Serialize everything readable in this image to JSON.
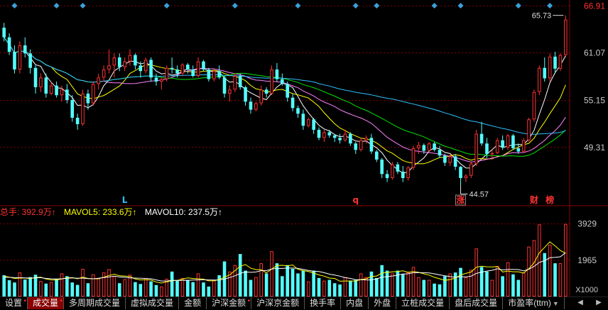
{
  "colors": {
    "up": "#ff3232",
    "down": "#54ffff",
    "ma5": "#ffffff",
    "ma10": "#ffff00",
    "ma20": "#ff80ff",
    "ma30": "#00e600",
    "ma60": "#2ec0ff",
    "grid": "#8a0000",
    "axis_text": "#c8c8c8",
    "marker": "#3aa0d8"
  },
  "legend": {
    "total_label": "总手: 392.9万↑",
    "mavol5_label": "MAVOL5: 233.6万↑",
    "mavol10_label": "MAVOL10: 237.5万↑"
  },
  "tabs": [
    {
      "label": "设置",
      "dot": true
    },
    {
      "label": "成交量",
      "dot": true,
      "active": true
    },
    {
      "label": "多周期成交量"
    },
    {
      "label": "虚拟成交量"
    },
    {
      "label": "金额"
    },
    {
      "label": "沪深金额",
      "dot": true
    },
    {
      "label": "沪深京金额"
    },
    {
      "label": "换手率"
    },
    {
      "label": "内盘"
    },
    {
      "label": "外盘"
    },
    {
      "label": "立桩成交量"
    },
    {
      "label": "盘后成交量"
    },
    {
      "label": "市盈率(ttm)",
      "dropdown": true
    }
  ],
  "chart_data": [
    {
      "type": "candlestick",
      "ylim": [
        42.5,
        67.2
      ],
      "yticks": [
        "66.91",
        "61.07",
        "55.15",
        "49.31"
      ],
      "max_label": "65.73",
      "min_label": "44.57",
      "annotations": [
        {
          "text": "L",
          "color": "#2ec0ff",
          "at_index": 23
        },
        {
          "text": "q",
          "color": "#ff3232",
          "at_index": 67
        },
        {
          "text": "涨",
          "color": "#ff3232",
          "boxed": true,
          "at_index": 87
        },
        {
          "text": "财",
          "color": "#ff3232",
          "at_index": 101
        },
        {
          "text": "榜",
          "color": "#ff3232",
          "at_index": 104
        }
      ],
      "top_marker_indices": [
        2,
        10,
        15,
        31,
        44,
        56,
        67,
        71,
        82,
        87,
        98,
        104
      ],
      "ohlc": [
        [
          64.2,
          64.8,
          62.5,
          63.0
        ],
        [
          63.0,
          63.5,
          60.8,
          61.2
        ],
        [
          61.2,
          62.0,
          58.5,
          59.0
        ],
        [
          59.0,
          62.5,
          58.5,
          62.0
        ],
        [
          62.0,
          63.0,
          60.5,
          61.0
        ],
        [
          61.0,
          61.5,
          58.5,
          59.2
        ],
        [
          59.2,
          59.5,
          56.0,
          56.8
        ],
        [
          56.8,
          58.5,
          56.2,
          58.0
        ],
        [
          58.0,
          58.5,
          55.5,
          56.0
        ],
        [
          56.0,
          57.5,
          55.8,
          57.0
        ],
        [
          57.0,
          57.5,
          55.5,
          55.8
        ],
        [
          55.8,
          57.0,
          55.0,
          56.5
        ],
        [
          56.5,
          57.2,
          54.8,
          55.2
        ],
        [
          55.2,
          55.8,
          52.5,
          53.0
        ],
        [
          53.0,
          53.5,
          51.5,
          52.2
        ],
        [
          52.2,
          56.5,
          52.0,
          56.0
        ],
        [
          56.0,
          56.5,
          54.0,
          54.8
        ],
        [
          54.8,
          57.5,
          54.5,
          57.2
        ],
        [
          57.2,
          58.5,
          56.5,
          58.0
        ],
        [
          58.0,
          59.5,
          57.5,
          59.0
        ],
        [
          59.0,
          61.5,
          58.5,
          59.5
        ],
        [
          59.5,
          61.0,
          58.0,
          60.5
        ],
        [
          60.5,
          61.0,
          58.8,
          59.3
        ],
        [
          59.3,
          60.5,
          58.8,
          60.0
        ],
        [
          60.0,
          61.5,
          59.5,
          60.8
        ],
        [
          60.8,
          61.0,
          59.0,
          59.5
        ],
        [
          59.5,
          60.0,
          58.0,
          58.8
        ],
        [
          58.8,
          60.5,
          58.5,
          60.2
        ],
        [
          60.2,
          60.5,
          57.5,
          58.0
        ],
        [
          58.0,
          58.5,
          57.0,
          57.5
        ],
        [
          57.5,
          58.0,
          56.5,
          57.8
        ],
        [
          57.8,
          59.5,
          57.5,
          59.2
        ],
        [
          59.2,
          60.5,
          58.5,
          59.0
        ],
        [
          59.0,
          59.5,
          58.0,
          58.5
        ],
        [
          58.5,
          59.8,
          58.2,
          59.6
        ],
        [
          59.6,
          59.8,
          58.5,
          59.0
        ],
        [
          59.0,
          59.5,
          58.0,
          58.2
        ],
        [
          58.2,
          60.5,
          58.0,
          60.0
        ],
        [
          60.0,
          60.2,
          58.8,
          59.0
        ],
        [
          59.0,
          59.2,
          57.5,
          57.8
        ],
        [
          57.8,
          59.0,
          57.5,
          58.8
        ],
        [
          58.8,
          59.5,
          57.8,
          58.0
        ],
        [
          58.0,
          58.2,
          55.5,
          56.0
        ],
        [
          56.0,
          57.0,
          55.0,
          56.5
        ],
        [
          56.5,
          58.5,
          56.2,
          58.2
        ],
        [
          58.2,
          58.5,
          56.5,
          56.8
        ],
        [
          56.8,
          57.0,
          54.5,
          55.0
        ],
        [
          55.0,
          55.5,
          53.5,
          54.0
        ],
        [
          54.0,
          55.0,
          53.8,
          54.8
        ],
        [
          54.8,
          57.0,
          54.5,
          56.5
        ],
        [
          56.5,
          56.8,
          55.5,
          56.0
        ],
        [
          56.0,
          59.5,
          55.8,
          59.0
        ],
        [
          59.0,
          59.8,
          57.5,
          57.8
        ],
        [
          57.8,
          58.5,
          57.0,
          57.2
        ],
        [
          57.2,
          57.5,
          55.0,
          55.5
        ],
        [
          55.5,
          56.0,
          53.8,
          54.2
        ],
        [
          54.2,
          54.5,
          53.0,
          53.5
        ],
        [
          53.5,
          54.0,
          51.5,
          52.0
        ],
        [
          52.0,
          53.0,
          51.8,
          52.8
        ],
        [
          52.8,
          53.0,
          51.0,
          51.5
        ],
        [
          51.5,
          51.8,
          50.2,
          50.5
        ],
        [
          50.5,
          51.5,
          50.0,
          51.2
        ],
        [
          51.2,
          51.5,
          50.5,
          50.8
        ],
        [
          50.8,
          51.0,
          50.0,
          50.5
        ],
        [
          50.5,
          51.0,
          49.8,
          50.2
        ],
        [
          50.2,
          51.5,
          50.0,
          51.0
        ],
        [
          51.0,
          51.2,
          49.5,
          49.8
        ],
        [
          49.8,
          50.0,
          48.5,
          49.0
        ],
        [
          49.0,
          50.5,
          48.8,
          50.2
        ],
        [
          50.2,
          50.8,
          49.8,
          50.5
        ],
        [
          50.5,
          51.0,
          48.5,
          48.8
        ],
        [
          48.8,
          49.0,
          47.5,
          47.8
        ],
        [
          47.8,
          48.0,
          45.5,
          46.0
        ],
        [
          46.0,
          46.5,
          45.0,
          45.5
        ],
        [
          45.5,
          47.5,
          45.3,
          47.2
        ],
        [
          47.2,
          47.5,
          46.0,
          46.3
        ],
        [
          46.3,
          47.0,
          45.0,
          45.5
        ],
        [
          45.5,
          47.0,
          45.2,
          46.8
        ],
        [
          46.8,
          49.5,
          46.5,
          49.2
        ],
        [
          49.2,
          50.0,
          48.5,
          49.6
        ],
        [
          49.6,
          49.8,
          48.5,
          48.9
        ],
        [
          48.9,
          50.0,
          48.7,
          49.8
        ],
        [
          49.8,
          50.0,
          48.8,
          49.0
        ],
        [
          49.0,
          49.5,
          48.0,
          48.3
        ],
        [
          48.3,
          48.5,
          47.0,
          47.4
        ],
        [
          47.4,
          48.5,
          47.0,
          48.2
        ],
        [
          48.2,
          48.5,
          46.5,
          46.9
        ],
        [
          46.9,
          47.0,
          44.57,
          45.5
        ],
        [
          45.5,
          46.0,
          45.0,
          45.8
        ],
        [
          45.8,
          47.5,
          45.5,
          47.3
        ],
        [
          47.3,
          51.5,
          47.0,
          51.0
        ],
        [
          51.0,
          52.5,
          49.5,
          49.8
        ],
        [
          49.8,
          50.5,
          48.0,
          48.5
        ],
        [
          48.5,
          49.0,
          47.8,
          48.6
        ],
        [
          48.6,
          50.5,
          48.5,
          50.2
        ],
        [
          50.2,
          50.8,
          49.0,
          49.3
        ],
        [
          49.3,
          51.0,
          49.0,
          50.8
        ],
        [
          50.8,
          51.0,
          49.0,
          49.2
        ],
        [
          49.2,
          49.8,
          48.5,
          48.8
        ],
        [
          48.8,
          50.5,
          48.6,
          50.2
        ],
        [
          50.2,
          53.0,
          50.0,
          52.8
        ],
        [
          52.8,
          56.5,
          52.5,
          56.2
        ],
        [
          56.2,
          59.5,
          55.8,
          59.2
        ],
        [
          59.2,
          60.5,
          57.5,
          57.9
        ],
        [
          57.9,
          61.0,
          57.5,
          60.6
        ],
        [
          60.6,
          61.2,
          58.5,
          59.1
        ],
        [
          59.1,
          61.0,
          58.8,
          60.8
        ],
        [
          60.8,
          65.73,
          60.5,
          65.2
        ]
      ]
    },
    {
      "type": "bar",
      "ylim": [
        0,
        4300
      ],
      "yticks": [
        "3929",
        "1965"
      ],
      "unit_label": "X1000",
      "values": [
        1150,
        880,
        760,
        1300,
        920,
        1050,
        1180,
        840,
        700,
        780,
        960,
        1250,
        1100,
        760,
        630,
        1500,
        720,
        1200,
        980,
        1300,
        1480,
        1100,
        720,
        940,
        1180,
        780,
        680,
        1000,
        820,
        620,
        540,
        960,
        1350,
        860,
        1000,
        900,
        780,
        1250,
        760,
        540,
        900,
        1150,
        1900,
        1350,
        1700,
        2300,
        1400,
        900,
        1050,
        1800,
        1250,
        2450,
        1800,
        1100,
        1700,
        1500,
        1250,
        1400,
        820,
        1400,
        1000,
        860,
        900,
        720,
        650,
        1050,
        860,
        900,
        1250,
        1050,
        1350,
        1000,
        1700,
        1400,
        1250,
        1400,
        1200,
        1300,
        1600,
        1050,
        900,
        900,
        700,
        660,
        1100,
        1250,
        1300,
        1550,
        1050,
        1450,
        2600,
        1600,
        1350,
        900,
        1650,
        1100,
        1850,
        1200,
        900,
        1300,
        2700,
        3050,
        3900,
        2350,
        2800,
        1800,
        1800,
        3929
      ],
      "mavol5": [
        1100,
        1050,
        980,
        1000,
        1000,
        970,
        1030,
        1050,
        950,
        900,
        900,
        950,
        1020,
        1020,
        960,
        1050,
        980,
        960,
        960,
        1050,
        1140,
        1210,
        1120,
        1110,
        1080,
        950,
        900,
        910,
        890,
        780,
        730,
        790,
        860,
        870,
        940,
        1010,
        980,
        960,
        940,
        850,
        850,
        920,
        1050,
        1170,
        1400,
        1640,
        1730,
        1530,
        1460,
        1450,
        1280,
        1490,
        1680,
        1690,
        1660,
        1710,
        1470,
        1400,
        1350,
        1270,
        1170,
        1100,
        1000,
        980,
        830,
        840,
        840,
        840,
        920,
        960,
        1080,
        1110,
        1270,
        1300,
        1340,
        1350,
        1390,
        1310,
        1350,
        1310,
        1230,
        1160,
        1040,
        960,
        870,
        920,
        1000,
        1170,
        1250,
        1330,
        1590,
        1640,
        1610,
        1600,
        1620,
        1330,
        1380,
        1340,
        1340,
        1270,
        1510,
        1830,
        2370,
        2660,
        2960,
        2740,
        2490,
        2336
      ],
      "mavol10": [
        1050,
        1040,
        1020,
        1020,
        1010,
        1000,
        1010,
        1020,
        980,
        960,
        950,
        960,
        990,
        1010,
        990,
        1000,
        970,
        960,
        990,
        1030,
        1060,
        1100,
        1060,
        1040,
        1010,
        1000,
        990,
        980,
        960,
        900,
        840,
        840,
        870,
        870,
        870,
        870,
        890,
        900,
        910,
        900,
        890,
        900,
        940,
        1030,
        1120,
        1250,
        1330,
        1310,
        1330,
        1400,
        1400,
        1490,
        1520,
        1520,
        1540,
        1540,
        1520,
        1470,
        1410,
        1370,
        1350,
        1290,
        1210,
        1160,
        1100,
        1020,
        980,
        910,
        910,
        900,
        900,
        960,
        1040,
        1080,
        1110,
        1160,
        1220,
        1230,
        1290,
        1290,
        1290,
        1280,
        1230,
        1170,
        1120,
        1080,
        1050,
        1070,
        1060,
        1100,
        1250,
        1320,
        1380,
        1420,
        1500,
        1440,
        1470,
        1470,
        1460,
        1390,
        1480,
        1630,
        1850,
        1940,
        2100,
        2120,
        2150,
        2375
      ]
    }
  ]
}
